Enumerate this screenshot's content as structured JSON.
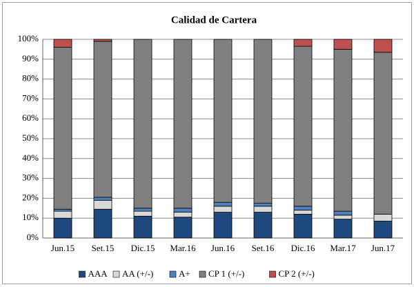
{
  "chart_data": {
    "type": "stacked_bar",
    "title": "Calidad de Cartera",
    "categories": [
      "Jun.15",
      "Set.15",
      "Dic.15",
      "Mar.16",
      "Jun.16",
      "Set.16",
      "Dic.16",
      "Mar.17",
      "Jun.17"
    ],
    "series": [
      {
        "name": "AAA",
        "color": "#1f497d",
        "values": [
          10,
          14.5,
          11,
          10.5,
          13,
          13,
          12,
          9.5,
          8.5
        ]
      },
      {
        "name": "AA (+/-)",
        "color": "#d9d9d9",
        "values": [
          3.5,
          4.5,
          2.5,
          2.5,
          3,
          3,
          2,
          2,
          3.5
        ]
      },
      {
        "name": "A+",
        "color": "#4f81bd",
        "values": [
          1,
          1.5,
          1.5,
          2,
          2,
          1.5,
          2,
          2,
          0
        ]
      },
      {
        "name": "CP 1  (+/-)",
        "color": "#808080",
        "values": [
          81.5,
          78.5,
          85,
          85,
          82,
          82.5,
          80.5,
          81.5,
          81.5
        ]
      },
      {
        "name": "CP 2 (+/-)",
        "color": "#c0504d",
        "values": [
          4,
          1,
          0,
          0,
          0,
          0,
          3.5,
          5,
          6.5
        ]
      }
    ],
    "ylim": [
      0,
      100
    ],
    "yticks": [
      {
        "value": 0,
        "label": "0%"
      },
      {
        "value": 10,
        "label": "10%"
      },
      {
        "value": 20,
        "label": "20%"
      },
      {
        "value": 30,
        "label": "30%"
      },
      {
        "value": 40,
        "label": "40%"
      },
      {
        "value": 50,
        "label": "50%"
      },
      {
        "value": 60,
        "label": "60%"
      },
      {
        "value": 70,
        "label": "70%"
      },
      {
        "value": 80,
        "label": "80%"
      },
      {
        "value": 90,
        "label": "90%"
      },
      {
        "value": 100,
        "label": "100%"
      }
    ],
    "grid": true,
    "legend": "bottom"
  }
}
